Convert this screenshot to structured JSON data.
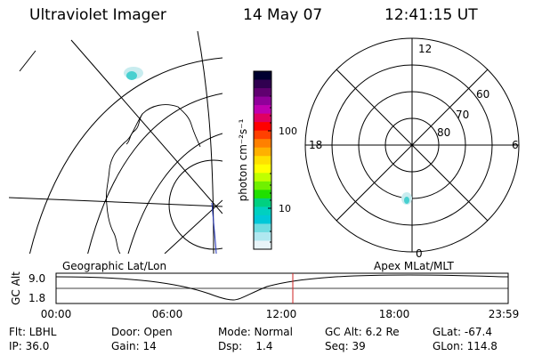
{
  "header": {
    "instrument": "Ultraviolet Imager",
    "date": "14 May 07",
    "time": "12:41:15 UT"
  },
  "colorbar": {
    "unit_label": "photon cm⁻²s⁻¹",
    "ticks": [
      "100",
      "10"
    ],
    "colors": [
      "#000030",
      "#300050",
      "#600070",
      "#90009a",
      "#c000b0",
      "#e00060",
      "#ff0000",
      "#ff4000",
      "#ff8000",
      "#ffb000",
      "#ffe000",
      "#ffff00",
      "#c0ff00",
      "#70f000",
      "#20e000",
      "#00d080",
      "#00d0c0",
      "#00c8d8",
      "#70dce0",
      "#b0e8f0",
      "#e8f4f8"
    ]
  },
  "polar_plot": {
    "ring_labels": [
      "60",
      "70",
      "80"
    ],
    "mlt_labels": {
      "top": "12",
      "left": "18",
      "right": "6",
      "bottom": "0"
    }
  },
  "orbit_panel": {
    "left_label": "Geographic Lat/Lon",
    "right_label": "Apex MLat/MLT",
    "axis_label": "GC Alt",
    "y_ticks": [
      "9.0",
      "1.8"
    ],
    "x_ticks": [
      "00:00",
      "06:00",
      "12:00",
      "18:00",
      "23:59"
    ],
    "current_time_marker": "12:41",
    "marker_color": "#cc2222"
  },
  "status": {
    "row1": {
      "filter": "Flt: LBHL",
      "door": "Door: Open",
      "mode": "Mode: Normal",
      "gc_alt": "GC Alt: 6.2 Re",
      "glat": "GLat: -67.4"
    },
    "row2": {
      "ip": "IP: 36.0",
      "gain": "Gain: 14",
      "dsp": "Dsp:    1.4",
      "seq": "Seq: 39",
      "glon": "GLon: 114.8"
    }
  }
}
